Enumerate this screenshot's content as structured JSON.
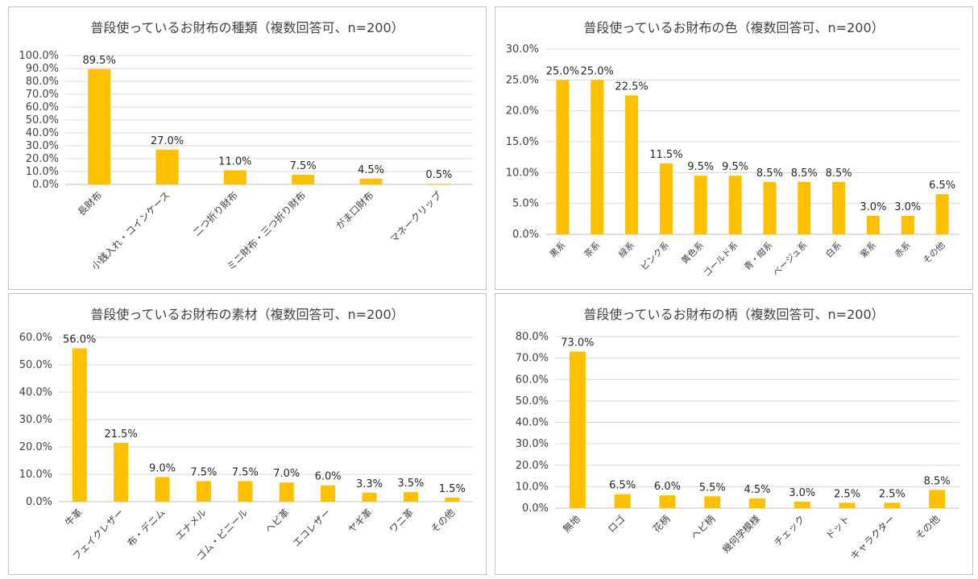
{
  "colors": {
    "bar": "#FFC000",
    "grid": "#d9d9d9",
    "axis": "#bfbfbf"
  },
  "chart_data": [
    {
      "type": "bar",
      "title": "普段使っているお財布の種類（複数回答可、n=200）",
      "categories": [
        "長財布",
        "小銭入れ・コインケース",
        "二つ折り財布",
        "ミニ財布・三つ折り財布",
        "がま口財布",
        "マネークリップ"
      ],
      "values": [
        89.5,
        27.0,
        11.0,
        7.5,
        4.5,
        0.5
      ],
      "value_labels": [
        "89.5%",
        "27.0%",
        "11.0%",
        "7.5%",
        "4.5%",
        "0.5%"
      ],
      "ylim": [
        0,
        100
      ],
      "yticks": [
        0,
        10,
        20,
        30,
        40,
        50,
        60,
        70,
        80,
        90,
        100
      ],
      "ytick_labels": [
        "0.0%",
        "10.0%",
        "20.0%",
        "30.0%",
        "40.0%",
        "50.0%",
        "60.0%",
        "70.0%",
        "80.0%",
        "90.0%",
        "100.0%"
      ],
      "xlabel": "",
      "ylabel": "",
      "grid": true
    },
    {
      "type": "bar",
      "title": "普段使っているお財布の色（複数回答可、n=200）",
      "categories": [
        "黒系",
        "茶系",
        "緑系",
        "ピンク系",
        "黄色系",
        "ゴールド系",
        "青・紺系",
        "ベージュ系",
        "白系",
        "紫系",
        "赤系",
        "その他"
      ],
      "values": [
        25.0,
        25.0,
        22.5,
        11.5,
        9.5,
        9.5,
        8.5,
        8.5,
        8.5,
        3.0,
        3.0,
        6.5
      ],
      "value_labels": [
        "25.0%",
        "25.0%",
        "22.5%",
        "11.5%",
        "9.5%",
        "9.5%",
        "8.5%",
        "8.5%",
        "8.5%",
        "3.0%",
        "3.0%",
        "6.5%"
      ],
      "ylim": [
        0,
        30
      ],
      "yticks": [
        0,
        5,
        10,
        15,
        20,
        25,
        30
      ],
      "ytick_labels": [
        "0.0%",
        "5.0%",
        "10.0%",
        "15.0%",
        "20.0%",
        "25.0%",
        "30.0%"
      ],
      "xlabel": "",
      "ylabel": "",
      "grid": true
    },
    {
      "type": "bar",
      "title": "普段使っているお財布の素材（複数回答可、n=200）",
      "categories": [
        "牛革",
        "フェイクレザー",
        "布・デニム",
        "エナメル",
        "ゴム・ビニール",
        "ヘビ革",
        "エコレザー",
        "ヤギ革",
        "ワニ革",
        "その他"
      ],
      "values": [
        56.0,
        21.5,
        9.0,
        7.5,
        7.5,
        7.0,
        6.0,
        3.3,
        3.5,
        1.5
      ],
      "value_labels": [
        "56.0%",
        "21.5%",
        "9.0%",
        "7.5%",
        "7.5%",
        "7.0%",
        "6.0%",
        "3.3%",
        "3.5%",
        "1.5%"
      ],
      "ylim": [
        0,
        60
      ],
      "yticks": [
        0,
        10,
        20,
        30,
        40,
        50,
        60
      ],
      "ytick_labels": [
        "0.0%",
        "10.0%",
        "20.0%",
        "30.0%",
        "40.0%",
        "50.0%",
        "60.0%"
      ],
      "xlabel": "",
      "ylabel": "",
      "grid": true
    },
    {
      "type": "bar",
      "title": "普段使っているお財布の柄（複数回答可、n=200）",
      "categories": [
        "無地",
        "ロゴ",
        "花柄",
        "ヘビ柄",
        "幾何学模様",
        "チェック",
        "ドット",
        "キャラクター",
        "その他"
      ],
      "values": [
        73.0,
        6.5,
        6.0,
        5.5,
        4.5,
        3.0,
        2.5,
        2.5,
        8.5
      ],
      "value_labels": [
        "73.0%",
        "6.5%",
        "6.0%",
        "5.5%",
        "4.5%",
        "3.0%",
        "2.5%",
        "2.5%",
        "8.5%"
      ],
      "ylim": [
        0,
        80
      ],
      "yticks": [
        0,
        10,
        20,
        30,
        40,
        50,
        60,
        70,
        80
      ],
      "ytick_labels": [
        "0.0%",
        "10.0%",
        "20.0%",
        "30.0%",
        "40.0%",
        "50.0%",
        "60.0%",
        "70.0%",
        "80.0%"
      ],
      "xlabel": "",
      "ylabel": "",
      "grid": true
    }
  ]
}
